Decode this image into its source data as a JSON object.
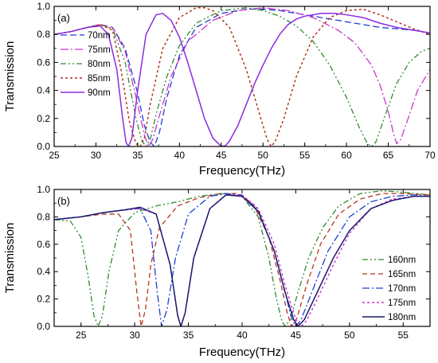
{
  "chart_data": [
    {
      "type": "line",
      "panel_label": "(a)",
      "xlabel": "Frequency(THz)",
      "ylabel": "Transmission",
      "xlim": [
        25,
        70
      ],
      "ylim": [
        0,
        1.0
      ],
      "xticks": [
        "25",
        "30",
        "35",
        "40",
        "45",
        "50",
        "55",
        "60",
        "65",
        "70"
      ],
      "yticks": [
        "0.0",
        "0.2",
        "0.4",
        "0.6",
        "0.8",
        "1.0"
      ],
      "legend_position": "left",
      "series": [
        {
          "name": "70nm",
          "color": "#1f3fd0",
          "dash": "8,4",
          "width": 1.3,
          "x": [
            25,
            27,
            29,
            30.5,
            32,
            33.5,
            35,
            35.8,
            36.5,
            37,
            37.6,
            38.5,
            40,
            42,
            45,
            48,
            50,
            52,
            54,
            56,
            58,
            60,
            62,
            64,
            66,
            68,
            70
          ],
          "y": [
            0.8,
            0.82,
            0.85,
            0.87,
            0.85,
            0.7,
            0.38,
            0.15,
            0.03,
            0,
            0.1,
            0.35,
            0.65,
            0.85,
            0.95,
            0.98,
            0.98,
            0.97,
            0.95,
            0.93,
            0.91,
            0.89,
            0.87,
            0.85,
            0.84,
            0.83,
            0.81
          ]
        },
        {
          "name": "75nm",
          "color": "#cc33cc",
          "dash": "10,3,2,3",
          "width": 1.3,
          "x": [
            25,
            27,
            29,
            30.5,
            32,
            33.5,
            35,
            35.8,
            36.3,
            36.8,
            37.5,
            39,
            41,
            44,
            47,
            50,
            53,
            56,
            59,
            61,
            63,
            64,
            65,
            65.6,
            66,
            66.5,
            67.5,
            68.5,
            70
          ],
          "y": [
            0.8,
            0.82,
            0.85,
            0.87,
            0.85,
            0.68,
            0.3,
            0.08,
            0,
            0.05,
            0.2,
            0.5,
            0.75,
            0.9,
            0.97,
            0.99,
            0.97,
            0.92,
            0.83,
            0.74,
            0.58,
            0.44,
            0.25,
            0.1,
            0.02,
            0.05,
            0.22,
            0.4,
            0.55
          ]
        },
        {
          "name": "80nm",
          "color": "#2e8b2e",
          "dash": "7,3,2,3,2,3",
          "width": 1.3,
          "x": [
            25,
            27,
            29,
            30.5,
            32,
            33.5,
            34.8,
            35.5,
            36,
            36.5,
            37.3,
            38.5,
            40,
            42,
            45,
            48,
            50,
            52,
            54,
            56,
            58,
            60,
            61.5,
            62.5,
            63,
            63.5,
            64.5,
            66,
            67.5,
            69,
            70
          ],
          "y": [
            0.8,
            0.82,
            0.85,
            0.87,
            0.84,
            0.6,
            0.2,
            0.04,
            0,
            0.05,
            0.25,
            0.5,
            0.72,
            0.88,
            0.97,
            0.99,
            0.97,
            0.93,
            0.86,
            0.75,
            0.58,
            0.35,
            0.14,
            0.02,
            0,
            0.03,
            0.2,
            0.45,
            0.6,
            0.68,
            0.7
          ]
        },
        {
          "name": "85nm",
          "color": "#b5341c",
          "dash": "3,3",
          "width": 1.5,
          "x": [
            25,
            27,
            29,
            30.5,
            32,
            33,
            34,
            34.8,
            35.3,
            35.8,
            36.5,
            38,
            40,
            42,
            43,
            44,
            46,
            48,
            49.5,
            50.5,
            51,
            51.5,
            52.5,
            54,
            56,
            58,
            60,
            62,
            64,
            66,
            68,
            70
          ],
          "y": [
            0.8,
            0.82,
            0.85,
            0.87,
            0.83,
            0.55,
            0.18,
            0.02,
            0,
            0.06,
            0.3,
            0.7,
            0.92,
            0.99,
            0.99,
            0.97,
            0.85,
            0.55,
            0.25,
            0.05,
            0,
            0.04,
            0.2,
            0.5,
            0.78,
            0.92,
            0.97,
            0.98,
            0.94,
            0.89,
            0.84,
            0.8
          ]
        },
        {
          "name": "90nm",
          "color": "#8a2be2",
          "dash": "",
          "width": 1.5,
          "x": [
            25,
            27,
            29,
            30.5,
            31.5,
            32.5,
            33.2,
            33.6,
            33.9,
            34.3,
            35,
            36,
            37.2,
            38,
            39,
            40,
            41,
            42,
            43,
            44,
            45,
            45.5,
            46,
            47,
            48,
            49,
            50,
            51,
            52,
            53,
            54,
            55,
            56,
            57,
            57.5,
            58.5,
            60,
            62,
            64,
            66,
            68,
            70
          ],
          "y": [
            0.8,
            0.82,
            0.85,
            0.86,
            0.8,
            0.55,
            0.2,
            0.03,
            0,
            0.06,
            0.4,
            0.8,
            0.94,
            0.95,
            0.9,
            0.78,
            0.6,
            0.4,
            0.2,
            0.06,
            0,
            0.005,
            0.04,
            0.15,
            0.3,
            0.45,
            0.58,
            0.7,
            0.8,
            0.87,
            0.91,
            0.93,
            0.94,
            0.95,
            0.95,
            0.95,
            0.94,
            0.92,
            0.88,
            0.85,
            0.83,
            0.81
          ]
        }
      ]
    },
    {
      "type": "line",
      "panel_label": "(b)",
      "xlabel": "Frequency(THz)",
      "ylabel": "Transmission",
      "xlim": [
        22.5,
        57.5
      ],
      "ylim": [
        0,
        1.0
      ],
      "xticks": [
        "25",
        "30",
        "35",
        "40",
        "45",
        "50",
        "55"
      ],
      "yticks": [
        "0.0",
        "0.2",
        "0.4",
        "0.6",
        "0.8",
        "1.0"
      ],
      "legend_position": "bottom-right",
      "series": [
        {
          "name": "160nm",
          "color": "#2e8b2e",
          "dash": "7,3,2,3,2,3",
          "width": 1.3,
          "x": [
            22.5,
            24,
            25,
            25.7,
            26.2,
            26.6,
            27,
            27.6,
            28.5,
            30,
            32,
            34,
            36,
            38,
            40,
            41.5,
            42.5,
            43.2,
            43.7,
            44,
            44.5,
            45.2,
            46.2,
            47.5,
            49,
            51,
            53,
            55,
            57.5
          ],
          "y": [
            0.78,
            0.77,
            0.65,
            0.35,
            0.08,
            0,
            0.08,
            0.4,
            0.7,
            0.83,
            0.88,
            0.91,
            0.95,
            0.97,
            0.95,
            0.8,
            0.5,
            0.2,
            0.04,
            0,
            0.05,
            0.25,
            0.5,
            0.72,
            0.88,
            0.97,
            0.99,
            0.98,
            0.96
          ]
        },
        {
          "name": "165nm",
          "color": "#b5341c",
          "dash": "6,4",
          "width": 1.3,
          "x": [
            22.5,
            25,
            27,
            28.5,
            29.6,
            30.2,
            30.6,
            31,
            31.5,
            32.3,
            34,
            36,
            38,
            39.5,
            41,
            42.5,
            43.5,
            44.2,
            44.6,
            45.1,
            46,
            47.3,
            49,
            51,
            53,
            55,
            57.5
          ],
          "y": [
            0.78,
            0.8,
            0.82,
            0.82,
            0.7,
            0.25,
            0,
            0.12,
            0.45,
            0.72,
            0.88,
            0.94,
            0.97,
            0.97,
            0.9,
            0.65,
            0.35,
            0.1,
            0,
            0.06,
            0.3,
            0.6,
            0.82,
            0.93,
            0.97,
            0.97,
            0.96
          ]
        },
        {
          "name": "170nm",
          "color": "#1f3fd0",
          "dash": "9,3,2,3",
          "width": 1.3,
          "x": [
            22.5,
            25,
            27,
            29,
            30.5,
            31.5,
            32.1,
            32.5,
            33,
            33.8,
            35,
            37,
            38.5,
            40,
            41.5,
            43,
            44,
            44.6,
            45,
            45.5,
            46.5,
            48,
            50,
            52,
            54,
            56,
            57.5
          ],
          "y": [
            0.78,
            0.8,
            0.83,
            0.85,
            0.86,
            0.7,
            0.25,
            0,
            0.12,
            0.5,
            0.82,
            0.95,
            0.97,
            0.96,
            0.85,
            0.55,
            0.25,
            0.06,
            0,
            0.05,
            0.25,
            0.55,
            0.8,
            0.91,
            0.95,
            0.96,
            0.95
          ]
        },
        {
          "name": "175nm",
          "color": "#cc33cc",
          "dash": "3,3",
          "width": 1.4,
          "x": [
            22.5,
            25,
            27,
            29,
            30.5,
            32,
            33.3,
            34,
            34.3,
            34.7,
            35.5,
            37,
            38.5,
            40,
            41.5,
            43,
            44,
            45,
            45.5,
            46,
            47,
            48.5,
            50,
            52,
            54,
            56,
            57.5
          ],
          "y": [
            0.78,
            0.8,
            0.83,
            0.85,
            0.86,
            0.82,
            0.45,
            0.08,
            0,
            0.1,
            0.5,
            0.86,
            0.96,
            0.96,
            0.86,
            0.6,
            0.3,
            0.05,
            0,
            0.04,
            0.2,
            0.45,
            0.68,
            0.86,
            0.93,
            0.95,
            0.95
          ]
        },
        {
          "name": "180nm",
          "color": "#1a1a6e",
          "dash": "",
          "width": 1.5,
          "x": [
            22.5,
            25,
            27,
            29,
            30.5,
            32,
            33.3,
            34,
            34.3,
            34.7,
            35.5,
            37,
            38.5,
            40,
            41.5,
            43,
            44,
            44.8,
            45.2,
            45.8,
            47,
            48.5,
            50,
            52,
            54,
            56,
            57.5
          ],
          "y": [
            0.78,
            0.8,
            0.83,
            0.85,
            0.87,
            0.82,
            0.45,
            0.08,
            0,
            0.1,
            0.5,
            0.86,
            0.96,
            0.95,
            0.84,
            0.55,
            0.25,
            0.05,
            0,
            0.05,
            0.25,
            0.5,
            0.7,
            0.86,
            0.92,
            0.95,
            0.95
          ]
        }
      ]
    }
  ]
}
